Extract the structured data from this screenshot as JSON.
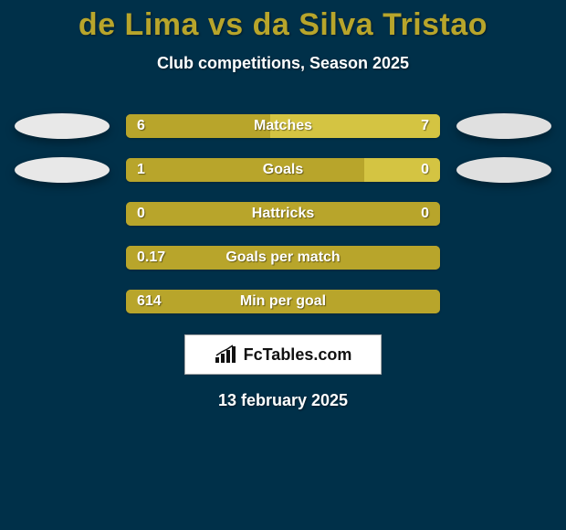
{
  "colors": {
    "background": "#003049",
    "title": "#b8a52b",
    "subtitle": "#ffffff",
    "date_text": "#ffffff",
    "bar_track": "#a39427",
    "bar_fill_left": "#b8a52b",
    "bar_fill_right": "#d4c442",
    "bar_text": "#ffffff",
    "badge_left": "#e8e8e8",
    "badge_right": "#e0e0e0",
    "brand_bg": "#ffffff",
    "brand_text": "#111111"
  },
  "header": {
    "title": "de Lima vs da Silva Tristao",
    "subtitle": "Club competitions, Season 2025"
  },
  "rows": [
    {
      "label": "Matches",
      "left": "6",
      "right": "7",
      "left_pct": 46,
      "right_pct": 54,
      "show_badges": true,
      "show_right_val": true
    },
    {
      "label": "Goals",
      "left": "1",
      "right": "0",
      "left_pct": 76,
      "right_pct": 24,
      "show_badges": true,
      "show_right_val": true
    },
    {
      "label": "Hattricks",
      "left": "0",
      "right": "0",
      "left_pct": 100,
      "right_pct": 0,
      "show_badges": false,
      "show_right_val": true
    },
    {
      "label": "Goals per match",
      "left": "0.17",
      "right": "",
      "left_pct": 100,
      "right_pct": 0,
      "show_badges": false,
      "show_right_val": false
    },
    {
      "label": "Min per goal",
      "left": "614",
      "right": "",
      "left_pct": 100,
      "right_pct": 0,
      "show_badges": false,
      "show_right_val": false
    }
  ],
  "brand": {
    "text": "FcTables.com"
  },
  "footer": {
    "date": "13 february 2025"
  }
}
